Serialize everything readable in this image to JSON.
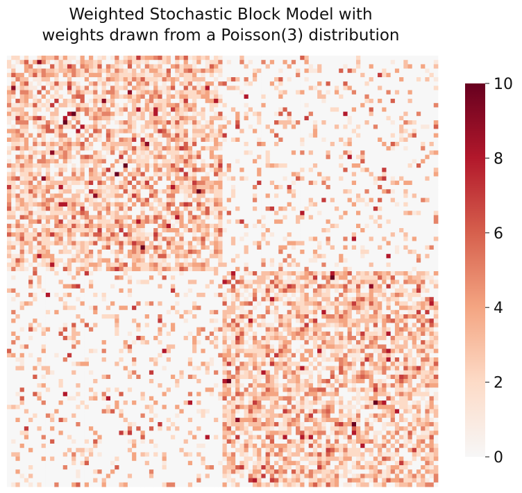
{
  "chart_data": {
    "type": "heatmap",
    "title_lines": [
      "Weighted Stochastic Block Model with",
      "weights drawn from a Poisson(3) distribution"
    ],
    "n": 100,
    "communities": 2,
    "block_boundary": 50,
    "weight_distribution": "Poisson(3)",
    "vmin": 0,
    "vmax": 10,
    "colormap": "RdBu_r (positive half, white to dark red)",
    "colorbar": {
      "ticks": [
        0,
        2,
        4,
        6,
        8,
        10
      ],
      "tick_labels": [
        "0",
        "2",
        "4",
        "6",
        "8",
        "10"
      ],
      "placement": "right"
    },
    "axes_visible": false,
    "grid": false,
    "legend": "none",
    "pattern": "assortative: within-block cells (rows/cols 0-49 and 50-99) are densely filled with weights ~0-10; between-block cells are mostly 0 with sparse nonzero weights",
    "within_block_nonzero_density": 0.8,
    "between_block_nonzero_density": 0.2,
    "colors": {
      "zero": "#f7f7f7",
      "scale": [
        "#f7f7f7",
        "#fddbc7",
        "#f4a582",
        "#d6604d",
        "#b2182b",
        "#67001f"
      ]
    }
  }
}
